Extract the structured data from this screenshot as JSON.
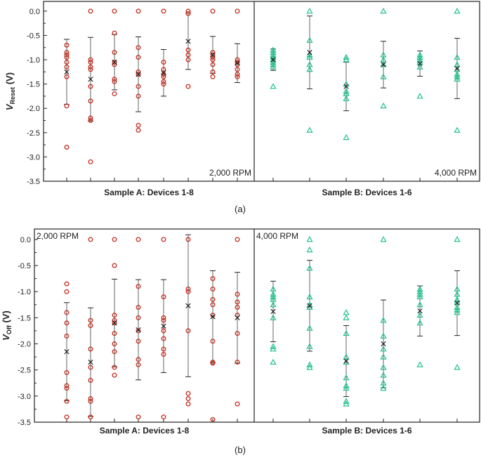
{
  "colors": {
    "sample_a": "#c8382a",
    "sample_b": "#22c28a",
    "mean_marker": "#222222",
    "error_bar": "#222222",
    "axis": "#222222"
  },
  "chart_data": [
    {
      "type": "scatter",
      "caption": "(a)",
      "ylabel_main": "V",
      "ylabel_sub": "Reset",
      "ylabel_unit": " (V)",
      "ylim": [
        -3.5,
        0.2
      ],
      "yticks": [
        "0.0",
        "-0.5",
        "-1.0",
        "-1.5",
        "-2.0",
        "-2.5",
        "-3.0",
        "-3.5"
      ],
      "panels": [
        {
          "label": "2,000 RPM",
          "xlabel": "Sample A: Devices 1-8",
          "marker": "circle",
          "devices": [
            {
              "points": [
                -0.7,
                -0.85,
                -0.9,
                -0.95,
                -1.05,
                -1.15,
                -1.35,
                -1.95,
                -2.8
              ],
              "mean": -1.25,
              "sd": 0.67
            },
            {
              "points": [
                0.0,
                -1.0,
                -1.05,
                -1.15,
                -1.2,
                -1.55,
                -1.85,
                -2.2,
                -2.25,
                -3.1
              ],
              "mean": -1.4,
              "sd": 0.86
            },
            {
              "points": [
                0.0,
                -0.45,
                -0.85,
                -1.05,
                -1.1,
                -1.4,
                -1.45,
                -1.7
              ],
              "mean": -1.05,
              "sd": 0.57
            },
            {
              "points": [
                0.0,
                -0.75,
                -0.95,
                -1.25,
                -1.3,
                -1.55,
                -1.75,
                -2.35,
                -2.45
              ],
              "mean": -1.3,
              "sd": 0.77
            },
            {
              "points": [
                0.0,
                -1.05,
                -1.2,
                -1.3,
                -1.35,
                -1.45,
                -1.5
              ],
              "mean": -1.27,
              "sd": 0.48
            },
            {
              "points": [
                0.0,
                -0.05,
                -0.8,
                -0.9,
                -1.0,
                -1.55
              ],
              "mean": -0.62,
              "sd": 0.58
            },
            {
              "points": [
                0.0,
                -0.85,
                -0.9,
                -0.95,
                -1.0,
                -1.1,
                -1.25,
                -1.35
              ],
              "mean": -0.9,
              "sd": 0.38
            },
            {
              "points": [
                0.0,
                -1.0,
                -1.05,
                -1.1,
                -1.2,
                -1.3,
                -1.35
              ],
              "mean": -1.07,
              "sd": 0.4
            }
          ]
        },
        {
          "label": "4,000 RPM",
          "xlabel": "Sample B: Devices 1-6",
          "marker": "triangle",
          "devices": [
            {
              "points": [
                -0.8,
                -0.85,
                -0.9,
                -0.95,
                -1.0,
                -1.05,
                -1.1,
                -1.15,
                -1.55
              ],
              "mean": -1.0,
              "sd": 0.22
            },
            {
              "points": [
                0.0,
                -0.6,
                -0.9,
                -0.95,
                -1.1,
                -1.2,
                -2.45
              ],
              "mean": -0.85,
              "sd": 0.75
            },
            {
              "points": [
                -0.95,
                -1.0,
                -1.5,
                -1.65,
                -1.7,
                -1.8,
                -2.6
              ],
              "mean": -1.55,
              "sd": 0.5
            },
            {
              "points": [
                0.0,
                -0.9,
                -1.0,
                -1.1,
                -1.35,
                -1.95
              ],
              "mean": -1.1,
              "sd": 0.48
            },
            {
              "points": [
                -0.9,
                -0.95,
                -1.0,
                -1.05,
                -1.15,
                -1.75
              ],
              "mean": -1.08,
              "sd": 0.26
            },
            {
              "points": [
                0.0,
                -0.95,
                -1.1,
                -1.2,
                -1.3,
                -1.35,
                -1.4,
                -2.45
              ],
              "mean": -1.18,
              "sd": 0.62
            }
          ]
        }
      ]
    },
    {
      "type": "scatter",
      "caption": "(b)",
      "ylabel_main": "V",
      "ylabel_sub": "Off",
      "ylabel_unit": " (V)",
      "ylim": [
        -3.5,
        0.2
      ],
      "yticks": [
        "0.0",
        "-0.5",
        "-1.0",
        "-1.5",
        "-2.0",
        "-2.5",
        "-3.0",
        "-3.5"
      ],
      "panels": [
        {
          "label": "2,000 RPM",
          "xlabel": "Sample A: Devices 1-8",
          "marker": "circle",
          "devices": [
            {
              "points": [
                -0.85,
                -1.0,
                -1.4,
                -1.6,
                -1.85,
                -2.55,
                -2.8,
                -2.85,
                -3.1,
                -3.4
              ],
              "mean": -2.15,
              "sd": 0.94
            },
            {
              "points": [
                0.0,
                -1.55,
                -1.65,
                -2.1,
                -2.45,
                -2.7,
                -3.05,
                -3.1,
                -3.4
              ],
              "mean": -2.35,
              "sd": 1.04
            },
            {
              "points": [
                0.0,
                -0.5,
                -1.45,
                -1.55,
                -1.6,
                -1.8,
                -2.0,
                -2.15,
                -2.45,
                -2.6
              ],
              "mean": -1.6,
              "sd": 0.84
            },
            {
              "points": [
                0.0,
                -0.9,
                -1.3,
                -1.5,
                -1.75,
                -1.95,
                -2.3,
                -2.4,
                -3.4
              ],
              "mean": -1.73,
              "sd": 0.96
            },
            {
              "points": [
                0.0,
                -1.1,
                -1.5,
                -1.55,
                -1.75,
                -1.9,
                -2.1,
                -2.2,
                -3.4
              ],
              "mean": -1.66,
              "sd": 0.89
            },
            {
              "points": [
                0.0,
                -0.95,
                -1.0,
                -1.75,
                -2.95,
                -3.05,
                -3.15
              ],
              "mean": -1.27,
              "sd": 1.36
            },
            {
              "points": [
                -0.75,
                -0.95,
                -1.15,
                -1.25,
                -1.45,
                -1.95,
                -2.35,
                -2.37,
                -3.45
              ],
              "mean": -1.48,
              "sd": 0.88
            },
            {
              "points": [
                0.0,
                -1.05,
                -1.2,
                -1.3,
                -1.45,
                -1.8,
                -2.35,
                -3.15
              ],
              "mean": -1.5,
              "sd": 0.87
            }
          ]
        },
        {
          "label": "4,000 RPM",
          "xlabel": "Sample B: Devices 1-6",
          "marker": "triangle",
          "devices": [
            {
              "points": [
                -0.95,
                -1.05,
                -1.1,
                -1.15,
                -1.25,
                -1.5,
                -2.05,
                -2.1,
                -2.35
              ],
              "mean": -1.38,
              "sd": 0.58
            },
            {
              "points": [
                0.0,
                -0.2,
                -0.55,
                -1.1,
                -1.25,
                -1.3,
                -1.7,
                -2.05,
                -2.4,
                -2.45
              ],
              "mean": -1.27,
              "sd": 0.87
            },
            {
              "points": [
                -1.4,
                -1.5,
                -1.8,
                -2.25,
                -2.35,
                -2.65,
                -2.8,
                -2.85,
                -3.1,
                -3.15
              ],
              "mean": -2.33,
              "sd": 0.68
            },
            {
              "points": [
                0.0,
                -1.55,
                -1.85,
                -2.1,
                -2.25,
                -2.45,
                -2.6,
                -2.75,
                -2.85
              ],
              "mean": -2.0,
              "sd": 0.84
            },
            {
              "points": [
                -0.95,
                -1.0,
                -1.05,
                -1.1,
                -1.25,
                -1.45,
                -1.6,
                -2.4
              ],
              "mean": -1.37,
              "sd": 0.48
            },
            {
              "points": [
                0.0,
                -0.95,
                -1.05,
                -1.15,
                -1.2,
                -1.3,
                -1.35,
                -1.4,
                -2.45
              ],
              "mean": -1.22,
              "sd": 0.62
            }
          ]
        }
      ]
    }
  ]
}
